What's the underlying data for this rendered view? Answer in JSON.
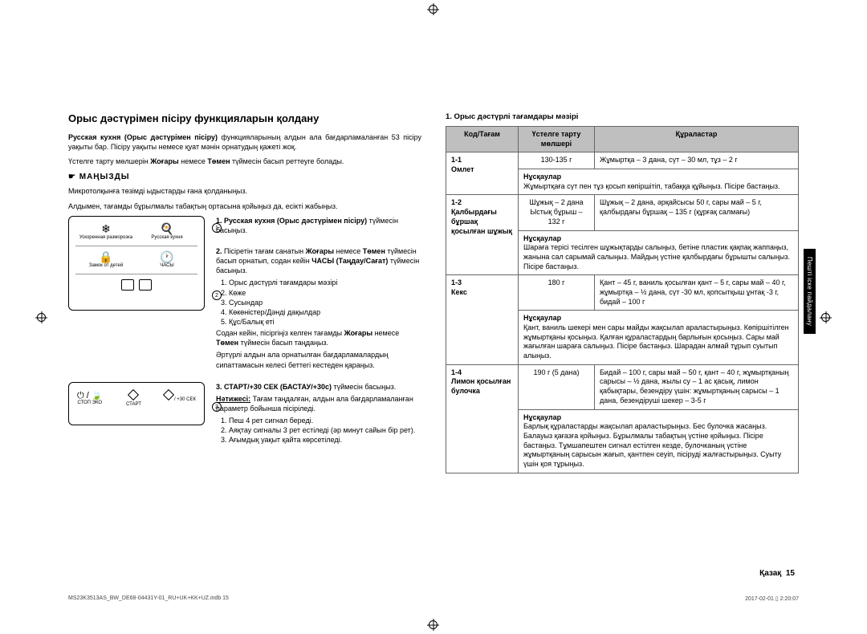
{
  "reg_marks": true,
  "side_tab": "Пешті іске пайдалану",
  "left": {
    "heading": "Орыс дәстүрімен пісіру функцияларын қолдану",
    "intro1_a": "Русская кухня (Орыс дәстүрімен пісіру) ",
    "intro1_b": "функцияларының алдын ала бағдарламаланған 53 пісіру уақыты бар. Пісіру уақыты немесе қуат мәнін орнатудың қажеті жоқ.",
    "intro2_a": "Үстелге тарту мөлшерін ",
    "intro2_b": "Жоғары",
    "intro2_c": " немесе ",
    "intro2_d": "Төмен",
    "intro2_e": " түймесін басып реттеуге болады.",
    "important_label": "МАҢЫЗДЫ",
    "important1": "Микротолқынға төзімді ыдыстарды ғана қолданыңыз.",
    "important2": "Алдымен, тағамды бұрылмалы табақтың ортасына қойыңыз да, есікті жабыңыз.",
    "panel1": {
      "icon_left_glyph": "❄",
      "icon_left_label": "Ускоренная разморозка",
      "icon_right_glyph": "🍳",
      "icon_right_label": "Русская кухня",
      "lock_glyph": "🔒",
      "lock_label": "Замок от детей",
      "clock_glyph": "🕐",
      "clock_label": "ЧАСЫ",
      "callout1": "1",
      "callout2": "2"
    },
    "step1_title": "1.  Русская кухня (Орыс дәстүрімен пісіру)",
    "step1_body": " түймесін басыңыз.",
    "step2_title": "2.",
    "step2_a": "  Пісіретін тағам санатын ",
    "step2_b": "Жоғары",
    "step2_c": " немесе ",
    "step2_d": "Төмен",
    "step2_e": " түймесін басып орнатып, содан кейін ",
    "step2_f": "ЧАСЫ (Таңдау/Сағат)",
    "step2_g": " түймесін басыңыз.",
    "step2_list": [
      "Орыс дәстүрлі тағамдары мәзірі",
      "Көже",
      "Сусындар",
      "Көкөністер/Дәнді дақылдар",
      "Құс/Балық еті"
    ],
    "step2_tail_a": "Содан кейін, пісіргіңіз келген тағамды ",
    "step2_tail_b": "Жоғары",
    "step2_tail_c": " немесе ",
    "step2_tail_d": "Төмен",
    "step2_tail_e": " түймесін басып таңдаңыз.",
    "step2_tail2": "Әртүрлі алдын ала орнатылған бағдарламалардың сипаттамасын келесі беттегі кестеден қараңыз.",
    "panel2": {
      "left_glyph": "⏻ / 🍃",
      "left_label": "СТОП   ЭКО",
      "mid_label": "СТАРТ",
      "right_label": "/ +30 СЕК",
      "callout3": "3"
    },
    "step3_title": "3.  СТАРТ/+30 СЕК (БАСТАУ/+30с)",
    "step3_a": " түймесін басыңыз.",
    "step3_res_label": "Нәтижесі:",
    "step3_res_body": " Тағам таңдалған, алдын ала бағдарламаланған параметр бойынша пісіріледі.",
    "step3_list": [
      "Пеш 4 рет сигнал береді.",
      "Аяқтау сигналы 3 рет естіледі (әр минут сайын бір рет).",
      "Ағымдық уақыт қайта көрсетіледі."
    ]
  },
  "right": {
    "table_title": "1. Орыс дәстүрлі тағамдары мәзірі",
    "headers": {
      "c1": "Код/Тағам",
      "c2": "Үстелге тарту мөлшері",
      "c3": "Құраластар"
    },
    "instr_label": "Нұсқаулар",
    "rows": [
      {
        "code": "1-1",
        "name": "Омлет",
        "portion": "130-135 г",
        "ingredients": "Жұмыртқа – 3 дана, сүт – 30 мл, тұз – 2 г",
        "instructions": "Жұмыртқаға сүт пен тұз қосып көпіршітіп, табаққа құйыңыз. Пісіре бастаңыз."
      },
      {
        "code": "1-2",
        "name": "Қалбырдағы бұршақ қосылған шұжық",
        "portion": "Шұжық – 2 дана\nЫстық бұрыш – 132 г",
        "ingredients": "Шұжық – 2 дана, әрқайсысы 50 г, сары май – 5 г, қалбырдағы бұршақ – 135 г (құрғақ салмағы)",
        "instructions": "Шараға терісі тесілген шұжықтарды салыңыз, бетіне пластик қақпақ жаппаңыз, жанына сал сарымай салыңыз. Майдың үстіне қалбырдағы бұрышты салыңыз. Пісіре бастаңыз."
      },
      {
        "code": "1-3",
        "name": "Кекс",
        "portion": "180 г",
        "ingredients": "Қант – 45 г, ваниль қосылған қант – 5 г, сары май – 40 г, жұмыртқа – ½ дана, сүт -30 мл, қопсытқыш ұнтақ -3 г, бидай – 100 г",
        "instructions": "Қант, ваниль шекері мен сары майды жақсылап араластырыңыз. Көпіршітілген жұмыртқаны қосыңыз. Қалған құраластардың барлығын қосыңыз. Сары май жағылған шараға салыңыз. Пісіре бастаңыз. Шарадан алмай тұрып суытып алыңыз."
      },
      {
        "code": "1-4",
        "name": "Лимон қосылған булочка",
        "portion": "190 г (5 дана)",
        "ingredients": "Бидай – 100 г, сары май – 50 г, қант – 40 г, жұмыртқаның сарысы – ½ дана, жылы су – 1 ас қасық, лимон қабықтары, безендіру үшін: жұмыртқаның сарысы – 1 дана, безендіруші шекер – 3-5  г",
        "instructions": "Барлық құраластарды жақсылап араластырыңыз. Бес булочка жасаңыз. Балауыз қағазға қойыңыз. Бұрылмалы табақтың үстіне қойыңыз. Пісіре бастаңыз. Тұмшапештен сигнал естілген кезде, булочканың үстіне жұмыртқаның сарысын жағып, қантпен сеуіп, пісіруді жалғастырыңыз. Суыту үшін қоя тұрыңыз."
      }
    ]
  },
  "page_label": "Қазақ",
  "page_num": "15",
  "footer_left": "MS23K3513AS_BW_DE68-04431Y-01_RU+UK+KK+UZ.indb   15",
  "footer_right": "2017-02-01   ▯ 2:20:07"
}
